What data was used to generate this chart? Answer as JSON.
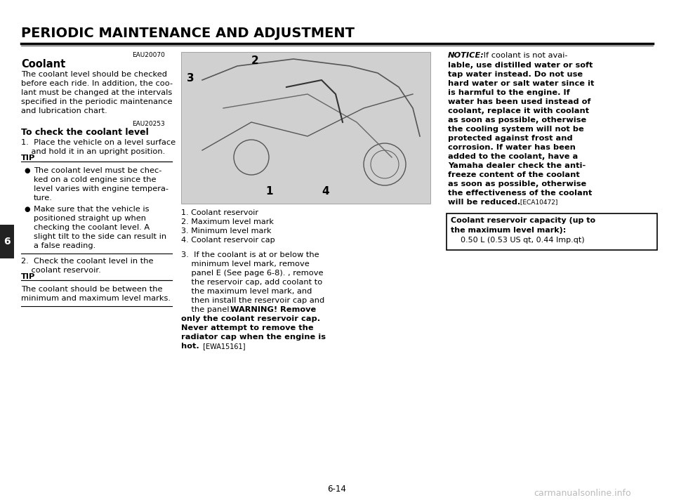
{
  "bg_color": "#ffffff",
  "page_title": "PERIODIC MAINTENANCE AND ADJUSTMENT",
  "page_number": "6-14",
  "left_tab_number": "6",
  "section_code_1": "EAU20070",
  "section_heading": "Coolant",
  "para1_lines": [
    "The coolant level should be checked",
    "before each ride. In addition, the coo-",
    "lant must be changed at the intervals",
    "specified in the periodic maintenance",
    "and lubrication chart."
  ],
  "section_code_2": "EAU20253",
  "subheading": "To check the coolant level",
  "step1_lines": [
    "1.  Place the vehicle on a level surface",
    "    and hold it in an upright position."
  ],
  "tip_label": "TIP",
  "tip1_bullet1_lines": [
    "The coolant level must be chec-",
    "ked on a cold engine since the",
    "level varies with engine tempera-",
    "ture."
  ],
  "tip1_bullet2_lines": [
    "Make sure that the vehicle is",
    "positioned straight up when",
    "checking the coolant level. A",
    "slight tilt to the side can result in",
    "a false reading."
  ],
  "step2_lines": [
    "2.  Check the coolant level in the",
    "    coolant reservoir."
  ],
  "tip2_lines": [
    "The coolant should be between the",
    "minimum and maximum level marks."
  ],
  "fig_captions": [
    "1. Coolant reservoir",
    "2. Maximum level mark",
    "3. Minimum level mark",
    "4. Coolant reservoir cap"
  ],
  "step3_lines": [
    "3.  If the coolant is at or below the",
    "    minimum level mark, remove",
    "    panel E (See page 6-8). , remove",
    "    the reservoir cap, add coolant to",
    "    the maximum level mark, and",
    "    then install the reservoir cap and",
    "    the panel. "
  ],
  "warning_intro": "the panel. ",
  "warning_lines_bold": [
    "WARNING! Remove",
    "only the coolant reservoir cap.",
    "Never attempt to remove the",
    "radiator cap when the engine is"
  ],
  "warning_last_bold": "hot.",
  "warning_code": " [EWA15161]",
  "notice_title": "NOTICE:",
  "notice_lines": [
    " If coolant is not avai-",
    "lable, use distilled water or soft",
    "tap water instead. Do not use",
    "hard water or salt water since it",
    "is harmful to the engine. If",
    "water has been used instead of",
    "coolant, replace it with coolant",
    "as soon as possible, otherwise",
    "the cooling system will not be",
    "protected against frost and",
    "corrosion. If water has been",
    "added to the coolant, have a",
    "Yamaha dealer check the anti-",
    "freeze content of the coolant",
    "as soon as possible, otherwise",
    "the effectiveness of the coolant",
    "will be reduced."
  ],
  "notice_code": " [ECA10472]",
  "box_line1": "Coolant reservoir capacity (up to",
  "box_line2": "the maximum level mark):",
  "box_line3": "    0.50 L (0.53 US qt, 0.44 Imp.qt)",
  "watermark": "carmanualsonline.info",
  "img_label_1": "1",
  "img_label_2": "2",
  "img_label_3": "3",
  "img_label_4": "4"
}
